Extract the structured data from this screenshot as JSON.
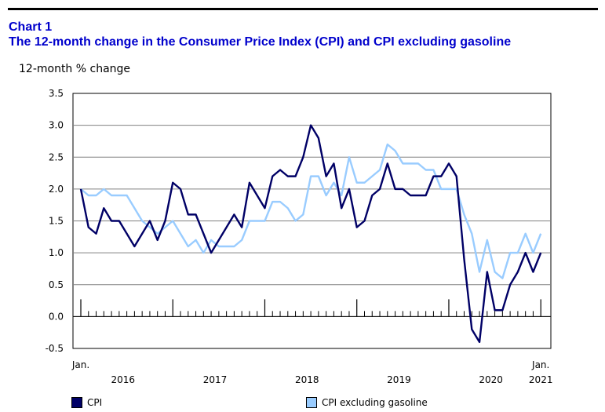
{
  "header": {
    "chart_label": "Chart 1",
    "title": "The 12-month change in the Consumer Price Index (CPI) and CPI excluding gasoline"
  },
  "chart_data": {
    "type": "line",
    "title": "The 12-month change in the Consumer Price Index (CPI) and CPI excluding gasoline",
    "ylabel": "12-month % change",
    "xlabel": "",
    "ylim": [
      -0.5,
      3.5
    ],
    "yticks": [
      "-0.5",
      "0.0",
      "0.5",
      "1.0",
      "1.5",
      "2.0",
      "2.5",
      "3.0",
      "3.5"
    ],
    "x_start": "Jan. 2016",
    "x_end": "Jan. 2021",
    "x_month_labels": [
      "Jan.",
      "Jan."
    ],
    "years": [
      "2016",
      "2017",
      "2018",
      "2019",
      "2020",
      "2021"
    ],
    "series": [
      {
        "name": "CPI",
        "color": "#000066",
        "values": [
          2.0,
          1.4,
          1.3,
          1.7,
          1.5,
          1.5,
          1.3,
          1.1,
          1.3,
          1.5,
          1.2,
          1.5,
          2.1,
          2.0,
          1.6,
          1.6,
          1.3,
          1.0,
          1.2,
          1.4,
          1.6,
          1.4,
          2.1,
          1.9,
          1.7,
          2.2,
          2.3,
          2.2,
          2.2,
          2.5,
          3.0,
          2.8,
          2.2,
          2.4,
          1.7,
          2.0,
          1.4,
          1.5,
          1.9,
          2.0,
          2.4,
          2.0,
          2.0,
          1.9,
          1.9,
          1.9,
          2.2,
          2.2,
          2.4,
          2.2,
          0.9,
          -0.2,
          -0.4,
          0.7,
          0.1,
          0.1,
          0.5,
          0.7,
          1.0,
          0.7,
          1.0
        ]
      },
      {
        "name": "CPI excluding gasoline",
        "color": "#99ccff",
        "values": [
          2.0,
          1.9,
          1.9,
          2.0,
          1.9,
          1.9,
          1.9,
          1.7,
          1.5,
          1.4,
          1.3,
          1.4,
          1.5,
          1.3,
          1.1,
          1.2,
          1.0,
          1.2,
          1.1,
          1.1,
          1.1,
          1.2,
          1.5,
          1.5,
          1.5,
          1.8,
          1.8,
          1.7,
          1.5,
          1.6,
          2.2,
          2.2,
          1.9,
          2.1,
          1.9,
          2.5,
          2.1,
          2.1,
          2.2,
          2.3,
          2.7,
          2.6,
          2.4,
          2.4,
          2.4,
          2.3,
          2.3,
          2.0,
          2.0,
          2.0,
          1.6,
          1.3,
          0.7,
          1.2,
          0.7,
          0.6,
          1.0,
          1.0,
          1.3,
          1.0,
          1.3
        ]
      }
    ],
    "legend": [
      "CPI",
      "CPI excluding gasoline"
    ],
    "grid": true
  }
}
